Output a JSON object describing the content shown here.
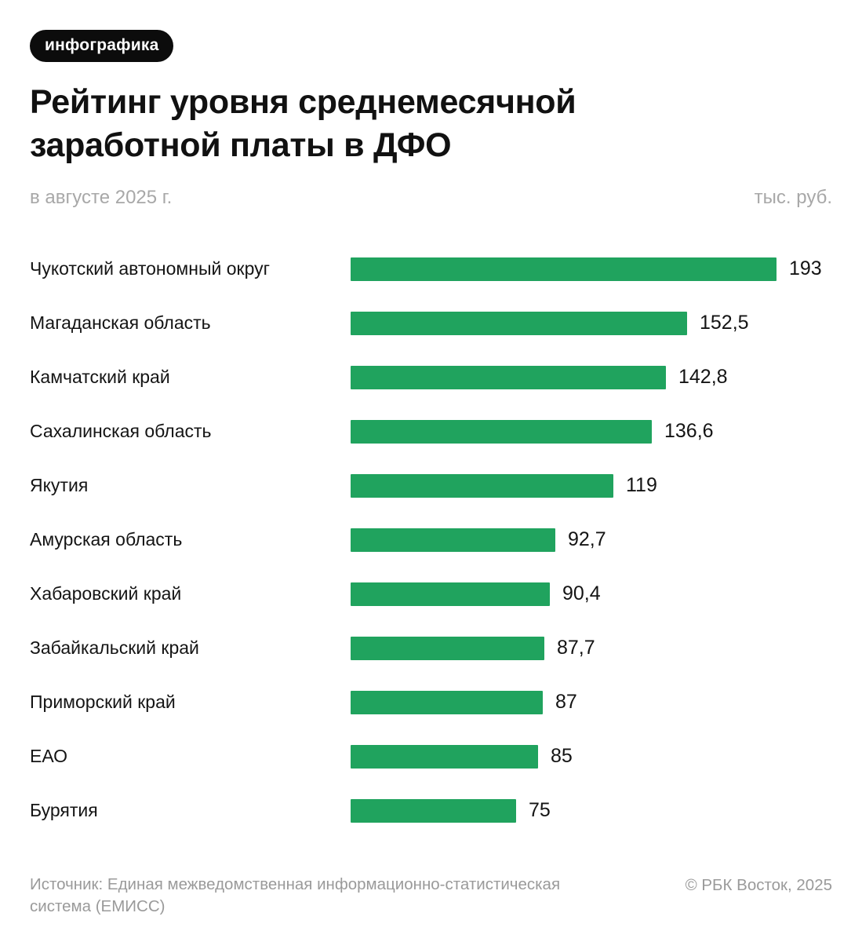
{
  "badge": {
    "label": "инфографика"
  },
  "header": {
    "title_lines": [
      "Рейтинг уровня среднемесячной",
      "заработной платы в ДФО"
    ],
    "period": "в августе 2025 г.",
    "units": "тыс. руб."
  },
  "chart_data": {
    "type": "bar",
    "orientation": "horizontal",
    "title": "Рейтинг уровня среднемесячной заработной платы в ДФО",
    "subtitle": "в августе 2025 г.",
    "units": "тыс. руб.",
    "xlim": [
      0,
      193
    ],
    "grid": false,
    "legend": false,
    "bar_color": "#20a35e",
    "categories": [
      "Чукотский автономный округ",
      "Магаданская область",
      "Камчатский край",
      "Сахалинская область",
      "Якутия",
      "Амурская область",
      "Хабаровский край",
      "Забайкальский край",
      "Приморский край",
      "ЕАО",
      "Бурятия"
    ],
    "values": [
      193,
      152.5,
      142.8,
      136.6,
      119,
      92.7,
      90.4,
      87.7,
      87,
      85,
      75
    ],
    "value_labels": [
      "193",
      "152,5",
      "142,8",
      "136,6",
      "119",
      "92,7",
      "90,4",
      "87,7",
      "87",
      "85",
      "75"
    ]
  },
  "footer": {
    "source_lines": [
      "Источник: Единая межведомственная информационно-статистическая",
      "система (ЕМИСС)"
    ],
    "credit": "© РБК Восток, 2025"
  }
}
